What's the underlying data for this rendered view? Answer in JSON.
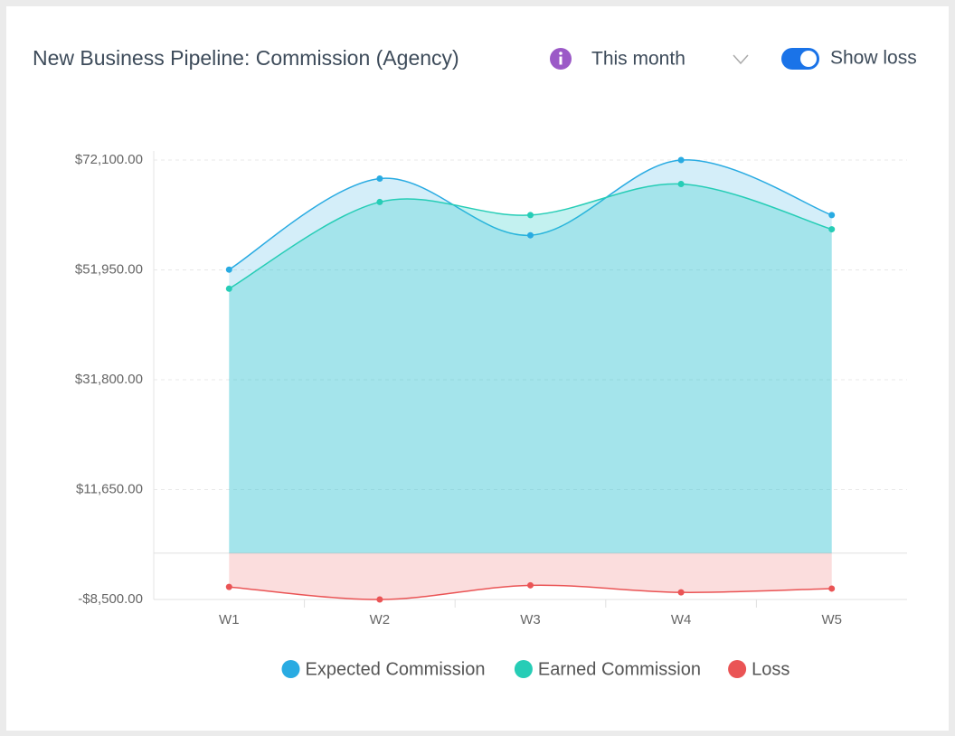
{
  "chart_data": {
    "type": "area",
    "title": "New Business Pipeline: Commission (Agency)",
    "controls": {
      "period": "This month",
      "toggle": "Show loss"
    },
    "categories": [
      "W1",
      "W2",
      "W3",
      "W4",
      "W5"
    ],
    "series": [
      {
        "name": "Expected Commission",
        "color": "#29abe2",
        "values": [
          52000,
          68700,
          58300,
          72100,
          62000
        ]
      },
      {
        "name": "Earned Commission",
        "color": "#26cdb6",
        "values": [
          48500,
          64400,
          62000,
          67700,
          59400
        ]
      },
      {
        "name": "Loss",
        "color": "#ea5455",
        "values": [
          -6200,
          -8500,
          -5900,
          -7200,
          -6500
        ]
      }
    ],
    "ylim": [
      -8500,
      72100
    ],
    "yticks": [
      {
        "value": -8500,
        "label": "-$8,500.00"
      },
      {
        "value": 11650,
        "label": "$11,650.00"
      },
      {
        "value": 31800,
        "label": "$31,800.00"
      },
      {
        "value": 51950,
        "label": "$51,950.00"
      },
      {
        "value": 72100,
        "label": "$72,100.00"
      }
    ],
    "grid": true
  }
}
